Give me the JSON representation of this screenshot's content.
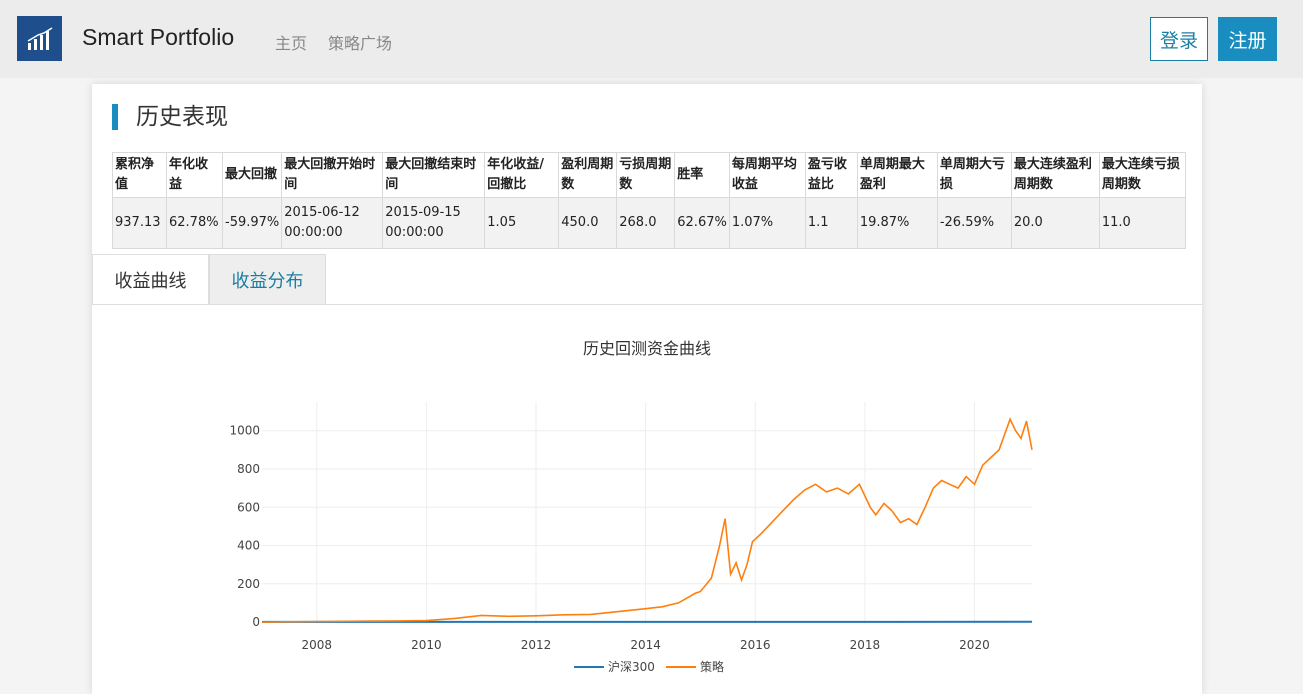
{
  "header": {
    "brand": "Smart Portfolio",
    "nav": [
      "主页",
      "策略广场"
    ],
    "login_label": "登录",
    "register_label": "注册",
    "brand_color": "#1e4f8c",
    "accent_color": "#1a8dc0"
  },
  "section": {
    "title": "历史表现"
  },
  "stats_table": {
    "headers": [
      "累积净值",
      "年化收益",
      "最大回撤",
      "最大回撤开始时间",
      "最大回撤结束时间",
      "年化收益/回撤比",
      "盈利周期数",
      "亏损周期数",
      "胜率",
      "每周期平均收益",
      "盈亏收益比",
      "单周期最大盈利",
      "单周期大亏损",
      "最大连续盈利周期数",
      "最大连续亏损周期数"
    ],
    "row": [
      "937.13",
      "62.78%",
      "-59.97%",
      "2015-06-12 00:00:00",
      "2015-09-15 00:00:00",
      "1.05",
      "450.0",
      "268.0",
      "62.67%",
      "1.07%",
      "1.1",
      "19.87%",
      "-26.59%",
      "20.0",
      "11.0"
    ]
  },
  "tabs": [
    {
      "label": "收益曲线",
      "active": false
    },
    {
      "label": "收益分布",
      "active": true
    }
  ],
  "chart_data": {
    "type": "line",
    "title": "历史回测资金曲线",
    "xlabel": "",
    "ylabel": "",
    "xlim": [
      2007.0,
      2021.05
    ],
    "ylim": [
      -10,
      1150
    ],
    "x_ticks": [
      2008,
      2010,
      2012,
      2014,
      2016,
      2018,
      2020
    ],
    "y_ticks": [
      0,
      200,
      400,
      600,
      800,
      1000
    ],
    "grid": true,
    "legend_position": "bottom-center",
    "series": [
      {
        "name": "沪深300",
        "color": "#1f77b4",
        "x": [
          2007.0,
          2021.05
        ],
        "values": [
          1,
          1.4
        ]
      },
      {
        "name": "策略",
        "color": "#ff7f0e",
        "x": [
          2007.0,
          2008.0,
          2009.0,
          2009.5,
          2010.0,
          2010.5,
          2011.0,
          2011.5,
          2012.0,
          2012.5,
          2013.0,
          2013.5,
          2014.0,
          2014.3,
          2014.6,
          2014.9,
          2015.0,
          2015.2,
          2015.35,
          2015.45,
          2015.55,
          2015.65,
          2015.75,
          2015.85,
          2015.95,
          2016.1,
          2016.3,
          2016.5,
          2016.7,
          2016.9,
          2017.1,
          2017.3,
          2017.5,
          2017.7,
          2017.9,
          2018.1,
          2018.2,
          2018.35,
          2018.5,
          2018.65,
          2018.8,
          2018.95,
          2019.1,
          2019.25,
          2019.4,
          2019.55,
          2019.7,
          2019.85,
          2020.0,
          2020.15,
          2020.3,
          2020.45,
          2020.55,
          2020.65,
          2020.75,
          2020.85,
          2020.95,
          2021.05
        ],
        "values": [
          0,
          3,
          5,
          6,
          8,
          18,
          35,
          30,
          33,
          38,
          40,
          55,
          70,
          80,
          100,
          150,
          160,
          230,
          400,
          540,
          250,
          310,
          220,
          300,
          420,
          460,
          520,
          580,
          640,
          690,
          720,
          680,
          700,
          670,
          720,
          600,
          560,
          620,
          580,
          520,
          540,
          510,
          600,
          700,
          740,
          720,
          700,
          760,
          720,
          820,
          860,
          900,
          980,
          1060,
          1000,
          960,
          1050,
          900
        ]
      }
    ]
  }
}
